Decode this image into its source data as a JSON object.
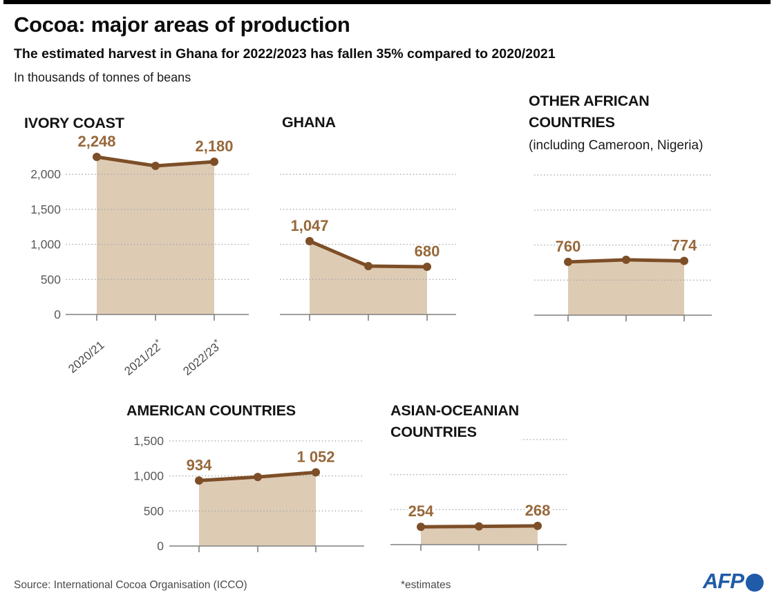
{
  "header": {
    "title": "Cocoa: major areas of production",
    "subtitle": "The estimated harvest in Ghana for 2022/2023 has fallen 35% compared to 2020/2021",
    "unit_note": "In thousands of tonnes of beans"
  },
  "chart_data": [
    {
      "type": "area",
      "title": "IVORY COAST",
      "categories": [
        "2020/21",
        "2021/22*",
        "2022/23*"
      ],
      "values": [
        2248,
        2120,
        2180
      ],
      "point_labels": [
        "2,248",
        null,
        "2,180"
      ],
      "ylim": [
        0,
        2400
      ],
      "yticks": [
        0,
        500,
        1000,
        1500,
        2000
      ],
      "ytick_labels": [
        "0",
        "500",
        "1,000",
        "1,500",
        "2,000"
      ],
      "show_y_labels": true,
      "show_x_labels": true,
      "grid": "dotted"
    },
    {
      "type": "area",
      "title": "GHANA",
      "categories": [
        "2020/21",
        "2021/22*",
        "2022/23*"
      ],
      "values": [
        1047,
        690,
        680
      ],
      "point_labels": [
        "1,047",
        null,
        "680"
      ],
      "ylim": [
        0,
        2400
      ],
      "yticks": [
        500,
        1000,
        1500,
        2000
      ],
      "ytick_labels": [
        "",
        "",
        "",
        ""
      ],
      "show_y_labels": false,
      "show_x_labels": false,
      "grid": "dotted"
    },
    {
      "type": "area",
      "title_lines": [
        "OTHER AFRICAN",
        "COUNTRIES"
      ],
      "subtitle": "(including Cameroon, Nigeria)",
      "categories": [
        "2020/21",
        "2021/22*",
        "2022/23*"
      ],
      "values": [
        760,
        790,
        774
      ],
      "point_labels": [
        "760",
        null,
        "774"
      ],
      "ylim": [
        0,
        2400
      ],
      "yticks": [
        500,
        1000,
        1500,
        2000
      ],
      "ytick_labels": [
        "",
        "",
        "",
        ""
      ],
      "show_y_labels": false,
      "show_x_labels": false,
      "grid": "dotted"
    },
    {
      "type": "area",
      "title": "AMERICAN COUNTRIES",
      "categories": [
        "2020/21",
        "2021/22*",
        "2022/23*"
      ],
      "values": [
        934,
        985,
        1052
      ],
      "point_labels": [
        "934",
        null,
        "1 052"
      ],
      "ylim": [
        0,
        1600
      ],
      "yticks": [
        0,
        500,
        1000,
        1500
      ],
      "ytick_labels": [
        "0",
        "500",
        "1,000",
        "1,500"
      ],
      "show_y_labels": true,
      "show_x_labels": false,
      "grid": "dotted"
    },
    {
      "type": "area",
      "title_lines": [
        "ASIAN-OCEANIAN",
        "COUNTRIES"
      ],
      "categories": [
        "2020/21",
        "2021/22*",
        "2022/23*"
      ],
      "values": [
        254,
        260,
        268
      ],
      "point_labels": [
        "254",
        null,
        "268"
      ],
      "ylim": [
        0,
        1600
      ],
      "yticks": [
        500,
        1000,
        1500
      ],
      "ytick_labels": [
        "",
        "",
        ""
      ],
      "show_y_labels": false,
      "show_x_labels": false,
      "grid": "dotted"
    }
  ],
  "footer": {
    "source": "Source: International Cocoa Organisation (ICCO)",
    "estimates_note": "*estimates",
    "logo_text": "AFP"
  },
  "colors": {
    "line_brown": "#7d4e27",
    "area_fill": "#ddcbb4",
    "value_label_brown": "#97683a",
    "gridline_gray": "#a8a8a8",
    "axis_gray": "#7f7f7f",
    "afp_blue": "#1f5ba8",
    "top_bar_black": "#000000"
  }
}
